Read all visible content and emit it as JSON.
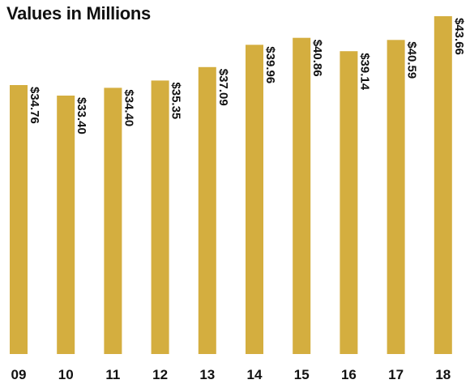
{
  "chart_data": {
    "type": "bar",
    "title": "Values in Millions",
    "categories": [
      "09",
      "10",
      "11",
      "12",
      "13",
      "14",
      "15",
      "16",
      "17",
      "18"
    ],
    "values": [
      34.76,
      33.4,
      34.4,
      35.35,
      37.09,
      39.96,
      40.86,
      39.14,
      40.59,
      43.66
    ],
    "data_labels": [
      "$34.76",
      "$33.40",
      "$34.40",
      "$35.35",
      "$37.09",
      "$39.96",
      "$40.86",
      "$39.14",
      "$40.59",
      "$43.66"
    ],
    "xlabel": "",
    "ylabel": "",
    "ylim": [
      0,
      43.66
    ],
    "grid": false,
    "bar_color": "#d4ae3f",
    "text_color": "#111111"
  }
}
